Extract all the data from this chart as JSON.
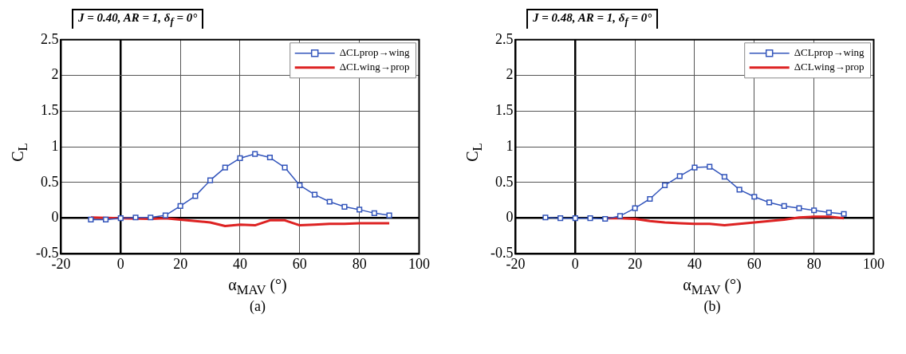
{
  "chart_data": [
    {
      "type": "line",
      "title": "J = 0.40, AR = 1, δ$_{f}$ = 0°",
      "xlabel": "α$_{MAV}$ (°)",
      "ylabel": "C$_{L}$",
      "annotations": [
        "(a)"
      ],
      "xlim": [
        -20,
        100
      ],
      "xticks": [
        -20,
        0,
        20,
        40,
        60,
        80,
        100
      ],
      "ylim": [
        -0.5,
        2.5
      ],
      "yticks": [
        -0.5,
        0,
        0.5,
        1,
        1.5,
        2,
        2.5
      ],
      "grid": true,
      "legend": "top right",
      "series": [
        {
          "name": "ΔCLprop→wing",
          "color": "#3355bb",
          "marker": "square",
          "x": [
            -10,
            -5,
            0,
            5,
            10,
            15,
            20,
            25,
            30,
            35,
            40,
            45,
            50,
            55,
            60,
            65,
            70,
            75,
            80,
            85,
            90
          ],
          "values": [
            -0.02,
            -0.02,
            0,
            0.01,
            0.01,
            0.04,
            0.17,
            0.31,
            0.53,
            0.71,
            0.84,
            0.9,
            0.85,
            0.71,
            0.46,
            0.33,
            0.23,
            0.16,
            0.12,
            0.07,
            0.04
          ]
        },
        {
          "name": "ΔCLwing→prop",
          "color": "#dd2222",
          "marker": "none",
          "x": [
            -10,
            0,
            10,
            15,
            20,
            25,
            30,
            35,
            40,
            45,
            50,
            55,
            60,
            65,
            70,
            75,
            80,
            85,
            90
          ],
          "values": [
            0.01,
            0,
            -0.01,
            0,
            -0.02,
            -0.04,
            -0.06,
            -0.11,
            -0.09,
            -0.1,
            -0.03,
            -0.03,
            -0.1,
            -0.09,
            -0.08,
            -0.08,
            -0.07,
            -0.07,
            -0.07
          ]
        }
      ]
    },
    {
      "type": "line",
      "title": "J = 0.48, AR = 1, δ$_{f}$ = 0°",
      "xlabel": "α$_{MAV}$ (°)",
      "ylabel": "C$_{L}$",
      "annotations": [
        "(b)"
      ],
      "xlim": [
        -20,
        100
      ],
      "xticks": [
        -20,
        0,
        20,
        40,
        60,
        80,
        100
      ],
      "ylim": [
        -0.5,
        2.5
      ],
      "yticks": [
        -0.5,
        0,
        0.5,
        1,
        1.5,
        2,
        2.5
      ],
      "grid": true,
      "legend": "top right",
      "series": [
        {
          "name": "ΔCLprop→wing",
          "color": "#3355bb",
          "marker": "square",
          "x": [
            -10,
            -5,
            0,
            5,
            10,
            15,
            20,
            25,
            30,
            35,
            40,
            45,
            50,
            55,
            60,
            65,
            70,
            75,
            80,
            85,
            90
          ],
          "values": [
            0.01,
            0,
            0,
            0,
            -0.01,
            0.03,
            0.14,
            0.27,
            0.46,
            0.59,
            0.71,
            0.72,
            0.58,
            0.4,
            0.3,
            0.22,
            0.17,
            0.14,
            0.11,
            0.08,
            0.06
          ]
        },
        {
          "name": "ΔCLwing→prop",
          "color": "#dd2222",
          "marker": "none",
          "x": [
            10,
            15,
            20,
            25,
            30,
            35,
            40,
            45,
            50,
            55,
            60,
            65,
            70,
            75,
            80,
            85,
            90
          ],
          "values": [
            0,
            0,
            -0.01,
            -0.04,
            -0.06,
            -0.07,
            -0.08,
            -0.08,
            -0.1,
            -0.08,
            -0.06,
            -0.04,
            -0.02,
            0.01,
            0.02,
            0.02,
            0
          ]
        }
      ]
    }
  ]
}
